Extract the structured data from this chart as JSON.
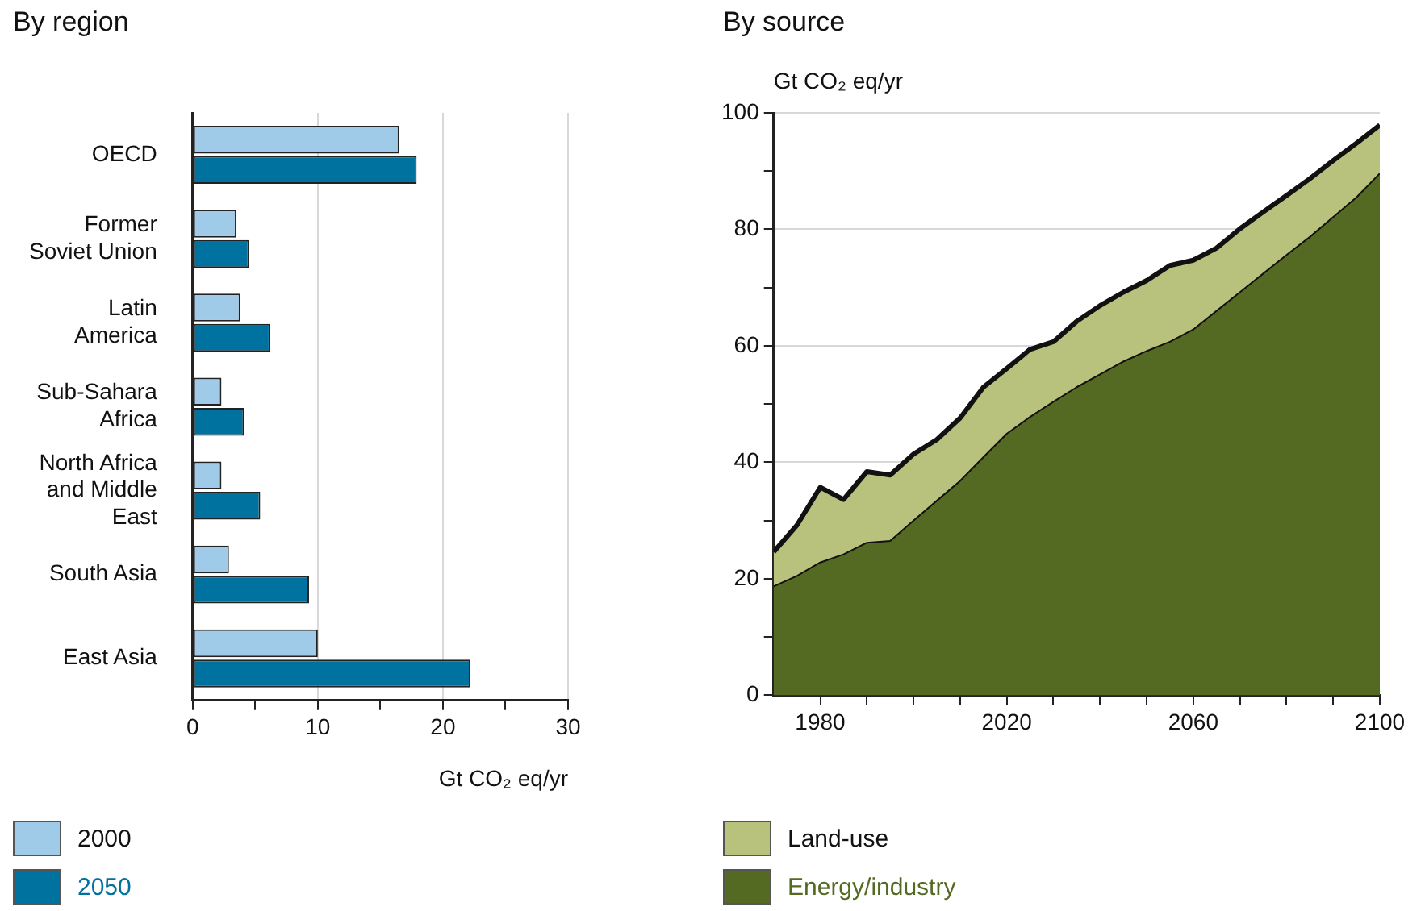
{
  "chart_data": [
    {
      "type": "bar",
      "orientation": "horizontal",
      "title": "By region",
      "xlabel": "Gt CO₂ eq/yr",
      "categories": [
        "OECD",
        "Former Soviet Union",
        "Latin America",
        "Sub-Sahara Africa",
        "North Africa and Middle East",
        "South Asia",
        "East Asia"
      ],
      "series": [
        {
          "name": "2000",
          "color": "#9fcbe8",
          "values": [
            16.5,
            3.5,
            3.8,
            2.3,
            2.3,
            2.9,
            10.0
          ]
        },
        {
          "name": "2050",
          "color": "#0072a0",
          "values": [
            17.9,
            4.5,
            6.2,
            4.1,
            5.4,
            9.3,
            22.2
          ]
        }
      ],
      "xlim": [
        0,
        30
      ],
      "xticks": [
        0,
        {
          "value": 5,
          "label": null
        },
        10,
        {
          "value": 15,
          "label": null
        },
        20,
        {
          "value": 25,
          "label": null
        },
        30
      ],
      "grid": "x",
      "legend": "bottom left"
    },
    {
      "type": "area",
      "stacked": true,
      "title": "By source",
      "ylabel": "Gt CO₂ eq/yr",
      "x": [
        1970,
        1975,
        1980,
        1985,
        1990,
        1995,
        2000,
        2005,
        2010,
        2015,
        2020,
        2025,
        2030,
        2035,
        2040,
        2045,
        2050,
        2055,
        2060,
        2065,
        2070,
        2075,
        2080,
        2085,
        2090,
        2095,
        2100
      ],
      "series": [
        {
          "name": "Energy/industry",
          "color": "#546a23",
          "values": [
            18.7,
            20.5,
            22.8,
            24.2,
            26.2,
            26.5,
            30.0,
            33.4,
            36.8,
            40.9,
            44.9,
            47.8,
            50.4,
            52.9,
            55.1,
            57.3,
            59.1,
            60.7,
            62.8,
            66.0,
            69.2,
            72.4,
            75.6,
            78.7,
            82.1,
            85.5,
            89.6
          ]
        },
        {
          "name": "Land-use",
          "color": "#b8c27c",
          "values": [
            5.9,
            8.7,
            12.9,
            9.4,
            12.2,
            11.3,
            11.4,
            10.5,
            10.8,
            12.0,
            11.2,
            11.6,
            10.3,
            11.3,
            11.8,
            11.9,
            12.1,
            13.1,
            11.9,
            10.8,
            10.9,
            10.6,
            10.2,
            10.0,
            9.7,
            9.3,
            8.3
          ]
        }
      ],
      "xlim": [
        1970,
        2100
      ],
      "xticks": [
        1980,
        {
          "value": 1990,
          "label": null
        },
        {
          "value": 2000,
          "label": null
        },
        {
          "value": 2010,
          "label": null
        },
        2020,
        {
          "value": 2030,
          "label": null
        },
        {
          "value": 2040,
          "label": null
        },
        {
          "value": 2050,
          "label": null
        },
        2060,
        {
          "value": 2070,
          "label": null
        },
        {
          "value": 2080,
          "label": null
        },
        {
          "value": 2090,
          "label": null
        },
        2100
      ],
      "ylim": [
        0,
        100
      ],
      "yticks": [
        0,
        {
          "value": 10,
          "label": null
        },
        20,
        {
          "value": 30,
          "label": null
        },
        40,
        {
          "value": 50,
          "label": null
        },
        60,
        {
          "value": 70,
          "label": null
        },
        80,
        {
          "value": 90,
          "label": null
        },
        100
      ],
      "grid": "y",
      "legend": "bottom left"
    }
  ]
}
